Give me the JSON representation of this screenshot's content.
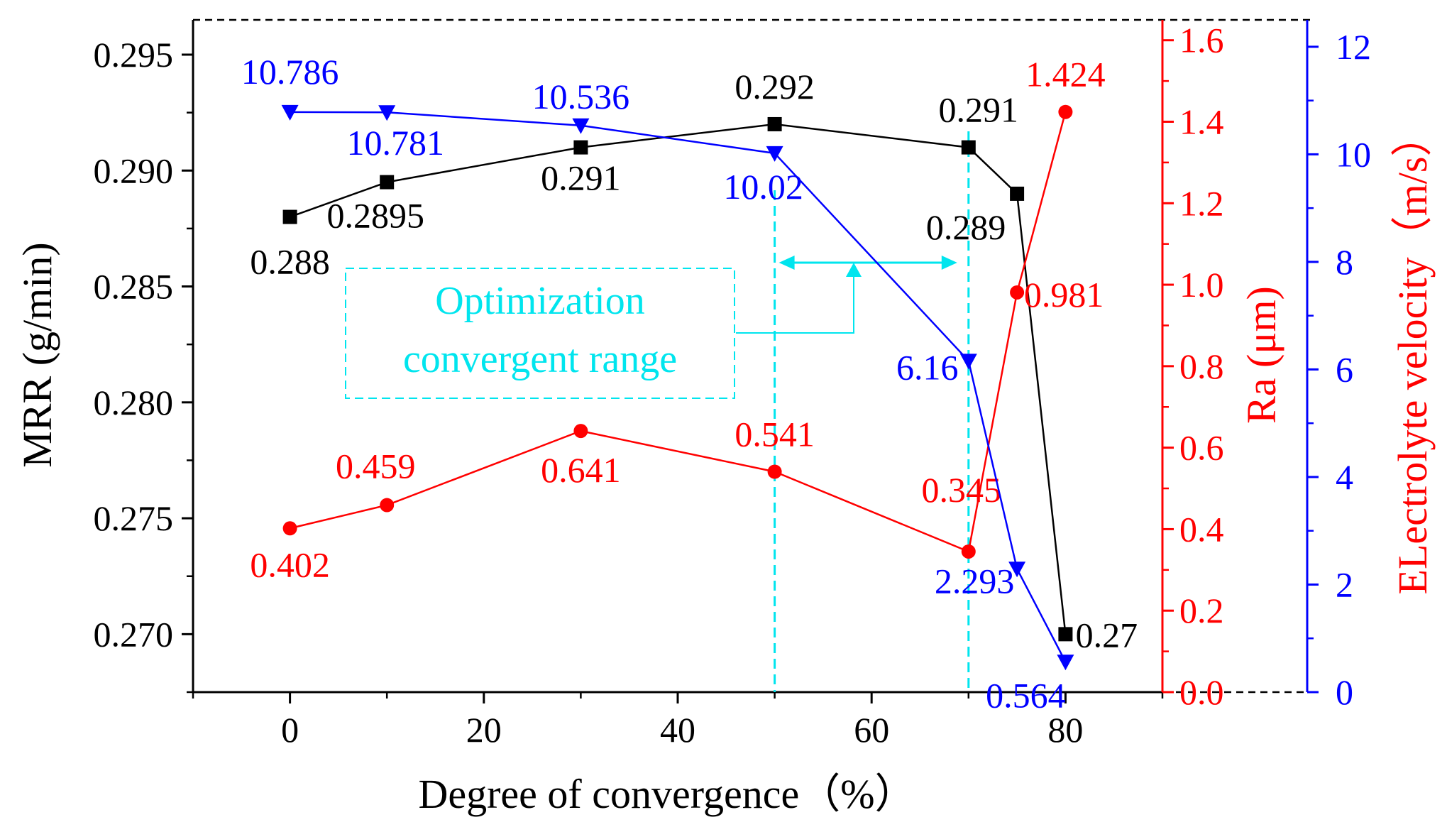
{
  "chart_data": {
    "type": "line",
    "xlabel": "Degree of convergence（%）",
    "x_ticks": [
      "0",
      "20",
      "40",
      "60",
      "80"
    ],
    "x_range": [
      -10,
      90
    ],
    "axes": {
      "mrr": {
        "label": "MRR (g/min)",
        "ticks": [
          "0.270",
          "0.275",
          "0.280",
          "0.285",
          "0.290",
          "0.295"
        ],
        "range": [
          0.2675,
          0.2965
        ]
      },
      "ra": {
        "label": "Ra (μm)",
        "ticks": [
          "0.0",
          "0.2",
          "0.4",
          "0.6",
          "0.8",
          "1.0",
          "1.2",
          "1.4",
          "1.6"
        ],
        "range": [
          0.0,
          1.65
        ]
      },
      "velocity": {
        "label": "ELectrolyte velocity（m/s）",
        "ticks": [
          "0",
          "2",
          "4",
          "6",
          "8",
          "10",
          "12"
        ],
        "range": [
          0,
          12.5
        ]
      }
    },
    "series": [
      {
        "name": "MRR",
        "axis": "mrr",
        "color": "#000000",
        "marker": "square",
        "x": [
          0,
          10,
          30,
          50,
          70,
          75,
          80
        ],
        "y": [
          0.288,
          0.2895,
          0.291,
          0.292,
          0.291,
          0.289,
          0.27
        ],
        "labels": [
          "0.288",
          "0.2895",
          "0.291",
          "0.292",
          "0.291",
          "0.289",
          "0.27"
        ]
      },
      {
        "name": "Ra",
        "axis": "ra",
        "color": "#ff0000",
        "marker": "circle",
        "x": [
          0,
          10,
          30,
          50,
          70,
          75,
          80
        ],
        "y": [
          0.402,
          0.459,
          0.641,
          0.541,
          0.345,
          0.981,
          1.424
        ],
        "labels": [
          "0.402",
          "0.459",
          "0.641",
          "0.541",
          "0.345",
          "0.981",
          "1.424"
        ]
      },
      {
        "name": "Electrolyte velocity",
        "axis": "velocity",
        "color": "#0000ff",
        "marker": "triangle-down",
        "x": [
          0,
          10,
          30,
          50,
          70,
          75,
          80
        ],
        "y": [
          10.786,
          10.781,
          10.536,
          10.02,
          6.16,
          2.293,
          0.564
        ],
        "labels": [
          "10.786",
          "10.781",
          "10.536",
          "10.02",
          "6.16",
          "2.293",
          "0.564"
        ]
      }
    ],
    "annotation": {
      "text_line1": "Optimization",
      "text_line2": "convergent range",
      "x_start": 50,
      "x_end": 70,
      "color": "#00e5ee"
    }
  }
}
